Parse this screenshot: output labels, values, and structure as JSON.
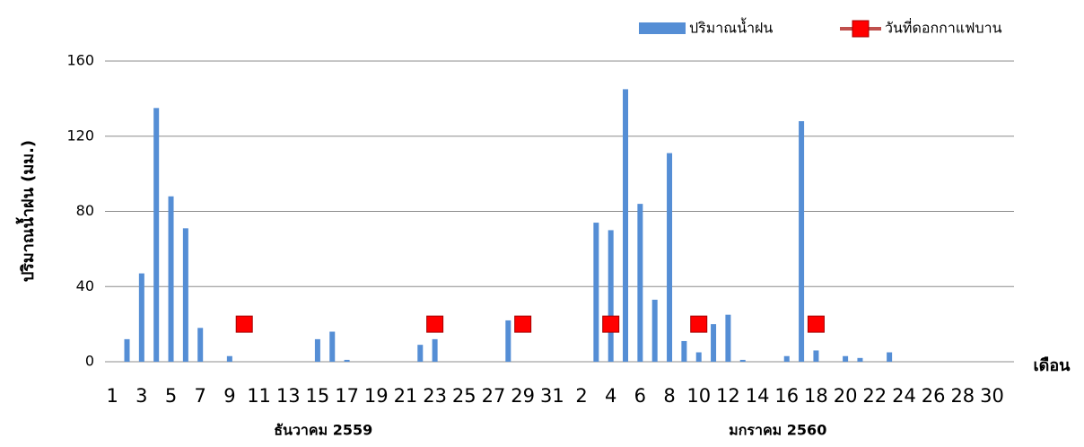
{
  "chart_data": {
    "type": "bar",
    "y_label": "ปริมาณน้ำฝน (มม.)",
    "x_label": "เดือน",
    "groups": [
      "ธันวาคม 2559",
      "มกราคม 2560"
    ],
    "categories": [
      "1",
      null,
      "3",
      null,
      "5",
      null,
      "7",
      null,
      "9",
      null,
      "11",
      null,
      "13",
      null,
      "15",
      null,
      "17",
      null,
      "19",
      null,
      "21",
      null,
      "23",
      null,
      "25",
      null,
      "27",
      null,
      "29",
      null,
      "31",
      null,
      "2",
      null,
      "4",
      null,
      "6",
      null,
      "8",
      null,
      "10",
      null,
      "12",
      null,
      "14",
      null,
      "16",
      null,
      "18",
      null,
      "20",
      null,
      "22",
      null,
      "24",
      null,
      "26",
      null,
      "28",
      null,
      "30",
      null
    ],
    "series": [
      {
        "name": "ปริมาณน้ำฝน",
        "type": "bar",
        "color": "#558ed5",
        "values": [
          0,
          12,
          47,
          135,
          88,
          71,
          18,
          0,
          3,
          0,
          0,
          0,
          0,
          0,
          12,
          16,
          1,
          0,
          0,
          0,
          0,
          9,
          12,
          0,
          0,
          0,
          0,
          22,
          0,
          0,
          0,
          0,
          0,
          74,
          70,
          145,
          84,
          33,
          111,
          11,
          5,
          20,
          25,
          1,
          0,
          0,
          3,
          128,
          6,
          0,
          3,
          2,
          0,
          5,
          0,
          0,
          0,
          0,
          0,
          0,
          0,
          0
        ]
      },
      {
        "name": "วันที่ดอกกาแฟบาน",
        "type": "marker",
        "color": "#ff0000",
        "line_color": "#c0504d",
        "values": [
          null,
          null,
          null,
          null,
          null,
          null,
          null,
          null,
          null,
          20,
          null,
          null,
          null,
          null,
          null,
          null,
          null,
          null,
          null,
          null,
          null,
          null,
          20,
          null,
          null,
          null,
          null,
          null,
          20,
          null,
          null,
          null,
          null,
          null,
          20,
          null,
          null,
          null,
          null,
          null,
          20,
          null,
          null,
          null,
          null,
          null,
          null,
          null,
          20,
          null,
          null,
          null,
          null,
          null,
          null,
          null,
          null,
          null,
          null,
          null,
          null,
          null
        ]
      }
    ],
    "ylim": [
      0,
      160
    ],
    "yticks": [
      0,
      40,
      80,
      120,
      160
    ],
    "grid": true,
    "legend": "top-right"
  }
}
